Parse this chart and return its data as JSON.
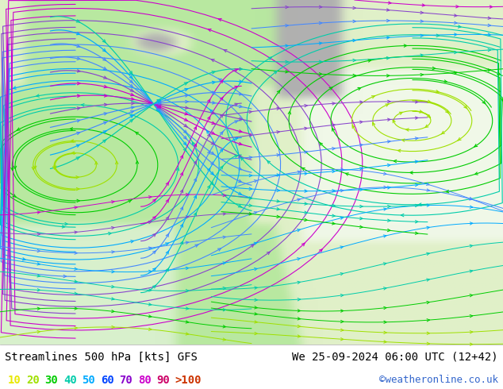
{
  "title_left": "Streamlines 500 hPa [kts] GFS",
  "title_right": "We 25-09-2024 06:00 UTC (12+42)",
  "credit": "©weatheronline.co.uk",
  "bg_ocean_color": "#b8e8a0",
  "land_color": "#e0f0c8",
  "land_light_color": "#f0f8e8",
  "mountain_color": "#b0b0b0",
  "title_color": "#000000",
  "title_fontsize": 10,
  "legend_fontsize": 10,
  "credit_color": "#3366cc",
  "credit_fontsize": 9,
  "fig_width": 6.34,
  "fig_height": 4.9,
  "dpi": 100,
  "bottom_bar_color": "#ffffff",
  "legend_labels": [
    "10",
    "20",
    "30",
    "40",
    "50",
    "60",
    "70",
    "80",
    "90",
    ">100"
  ],
  "legend_colors": [
    "#e8e800",
    "#a0e000",
    "#00cc00",
    "#00ccaa",
    "#00aaff",
    "#0044ff",
    "#8800cc",
    "#cc00cc",
    "#cc0066",
    "#cc3300"
  ],
  "speed_colors": [
    "#e8e800",
    "#a0e000",
    "#00cc00",
    "#00ccaa",
    "#00aaff",
    "#4488ff",
    "#8844cc",
    "#cc00cc",
    "#cc0066",
    "#cc3300"
  ]
}
